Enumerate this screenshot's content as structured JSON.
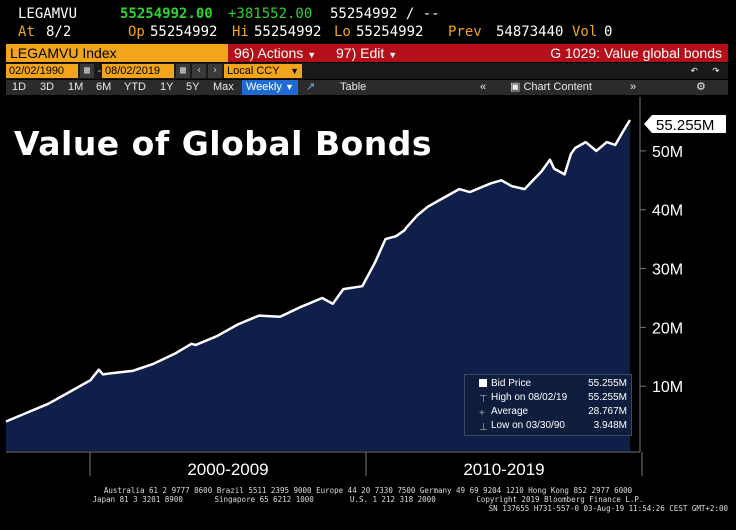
{
  "quote": {
    "ticker": "LEGAMVU",
    "last": "55254992.00",
    "change": "+381552.00",
    "bid_ask": "55254992 / --",
    "at_label": "At",
    "at_value": "8/2",
    "open_label": "Op",
    "open_value": "55254992",
    "high_label": "Hi",
    "high_value": "55254992",
    "low_label": "Lo",
    "low_value": "55254992",
    "prev_label": "Prev",
    "prev_value": "54873440",
    "vol_label": "Vol",
    "vol_value": "0"
  },
  "titlebar": {
    "security": "LEGAMVU Index",
    "actions": "96) Actions",
    "edit": "97) Edit",
    "page": "G 1029: Value global bonds"
  },
  "datebar": {
    "start": "02/02/1990",
    "end": "08/02/2019",
    "currency": "Local CCY"
  },
  "toolbar": {
    "ranges": [
      "1D",
      "3D",
      "1M",
      "6M",
      "YTD",
      "1Y",
      "5Y",
      "Max"
    ],
    "frequency": "Weekly",
    "table": "Table",
    "chart_content": "Chart Content"
  },
  "chart_title": "Value of Global Bonds",
  "last_value_tag": "55.255M",
  "legend": {
    "series": "Bid Price",
    "series_value": "55.255M",
    "high": "High on 08/02/19",
    "high_value": "55.255M",
    "average": "Average",
    "average_value": "28.767M",
    "low": "Low on 03/30/90",
    "low_value": "3.948M"
  },
  "footer": {
    "line1": "Australia 61 2 9777 8600 Brazil 5511 2395 9000 Europe 44 20 7330 7500 Germany 49 69 9204 1210 Hong Kong 852 2977 6000",
    "line2": "Japan 81 3 3201 8900       Singapore 65 6212 1000        U.S. 1 212 318 2000         Copyright 2019 Bloomberg Finance L.P.",
    "line3": "SN 137655 H731-557-0 03-Aug-19 11:54:26 CEST GMT+2:00"
  },
  "colors": {
    "area_fill": "#0f1f4a",
    "line": "#ffffff",
    "accent_orange": "#f2a51b",
    "title_red": "#b5101a",
    "up_green": "#2fd32f"
  },
  "chart_data": {
    "type": "area",
    "title": "Value of Global Bonds",
    "series": [
      {
        "name": "Bid Price",
        "x": [
          1990.0,
          1991.0,
          1992.0,
          1993.0,
          1994.0,
          1994.4,
          1994.6,
          1995.0,
          1996.0,
          1997.0,
          1998.0,
          1998.8,
          1999.0,
          2000.0,
          2001.0,
          2002.0,
          2003.0,
          2004.0,
          2005.0,
          2005.5,
          2006.0,
          2006.9,
          2007.5,
          2008.0,
          2008.5,
          2008.9,
          2009.0,
          2009.5,
          2010.0,
          2010.5,
          2011.0,
          2011.5,
          2012.0,
          2013.0,
          2013.5,
          2014.0,
          2014.6,
          2015.0,
          2015.4,
          2015.8,
          2016.0,
          2016.5,
          2016.8,
          2017.0,
          2017.5,
          2018.0,
          2018.5,
          2018.9,
          2019.3,
          2019.6
        ],
        "values": [
          4.0,
          5.5,
          7.0,
          9.0,
          11.0,
          12.8,
          12.0,
          12.2,
          12.6,
          13.8,
          15.5,
          17.2,
          17.0,
          18.5,
          20.5,
          22.0,
          21.8,
          23.5,
          25.0,
          24.0,
          26.5,
          27.0,
          31.0,
          35.0,
          35.5,
          36.5,
          37.0,
          39.0,
          40.5,
          41.5,
          42.5,
          43.5,
          43.0,
          44.5,
          45.0,
          44.0,
          43.5,
          45.0,
          46.5,
          48.5,
          47.0,
          46.0,
          49.5,
          50.5,
          51.5,
          50.0,
          51.5,
          51.0,
          53.5,
          55.255
        ]
      }
    ],
    "xlim": [
      1990.0,
      2019.6
    ],
    "ylim": [
      0,
      57
    ],
    "y_ticks": [
      10,
      20,
      30,
      40,
      50
    ],
    "y_tick_labels": [
      "10M",
      "20M",
      "30M",
      "40M",
      "50M"
    ],
    "x_tick_labels": [
      "2000-2009",
      "2010-2019"
    ],
    "grid": false,
    "legend_position": "bottom-right"
  }
}
